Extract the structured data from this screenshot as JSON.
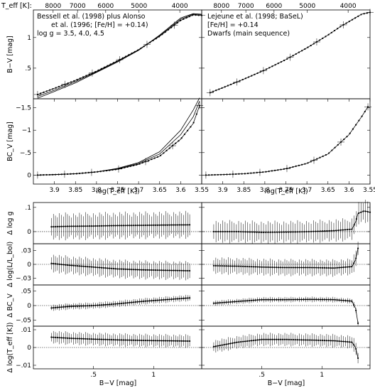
{
  "figure": {
    "teff_axis_label": "T_eff [K]:",
    "teff_ticks": [
      8000,
      7000,
      6000,
      5000,
      4000
    ],
    "logteff_label": "log(T_eff [K])",
    "bv_label": "B−V [mag]",
    "panel_notes": {
      "left": [
        "Bessell et al. (1998) plus Alonso",
        "et al. (1996; [Fe/H] = +0.14)",
        "log g = 3.5, 4.0, 4.5"
      ],
      "right": [
        "Lejeune et al. (1998; BaSeL)",
        "[Fe/H] = +0.14",
        "Dwarfs (main sequence)"
      ]
    }
  },
  "chart_data": [
    {
      "id": "top-left",
      "type": "line",
      "xlabel": "",
      "ylabel": "B−V [mag]",
      "xlim": [
        3.95,
        3.55
      ],
      "ylim": [
        0,
        1.45
      ],
      "x_ticks": [],
      "y_ticks": [
        0.5,
        1
      ],
      "series": [
        {
          "x": [
            3.94,
            3.9,
            3.85,
            3.8,
            3.75,
            3.7,
            3.65,
            3.6,
            3.57,
            3.55
          ],
          "y": [
            0.07,
            0.17,
            0.3,
            0.45,
            0.62,
            0.8,
            1.02,
            1.28,
            1.37,
            1.36
          ]
        },
        {
          "x": [
            3.94,
            3.9,
            3.85,
            3.8,
            3.75,
            3.7,
            3.65,
            3.6,
            3.57,
            3.55
          ],
          "y": [
            0.04,
            0.14,
            0.28,
            0.44,
            0.61,
            0.8,
            1.03,
            1.3,
            1.38,
            1.37
          ]
        },
        {
          "x": [
            3.94,
            3.9,
            3.85,
            3.8,
            3.75,
            3.7,
            3.65,
            3.6,
            3.57,
            3.55
          ],
          "y": [
            0.01,
            0.12,
            0.26,
            0.43,
            0.6,
            0.79,
            1.04,
            1.32,
            1.39,
            1.38
          ]
        }
      ]
    },
    {
      "id": "top-right",
      "type": "line",
      "xlabel": "",
      "ylabel": "",
      "xlim": [
        3.95,
        3.55
      ],
      "ylim": [
        0,
        1.45
      ],
      "x_ticks": [],
      "y_ticks": [
        0.5,
        1
      ],
      "series": [
        {
          "x": [
            3.93,
            3.9,
            3.85,
            3.8,
            3.75,
            3.7,
            3.65,
            3.62,
            3.6,
            3.57,
            3.55
          ],
          "y": [
            0.1,
            0.18,
            0.32,
            0.47,
            0.64,
            0.83,
            1.04,
            1.18,
            1.26,
            1.38,
            1.41
          ]
        }
      ]
    },
    {
      "id": "mid-left",
      "type": "line",
      "xlabel": "log(T_eff [K])",
      "ylabel": "BC_V [mag]",
      "xlim": [
        3.95,
        3.55
      ],
      "ylim": [
        0.2,
        -1.7
      ],
      "x_ticks": [
        3.9,
        3.85,
        3.8,
        3.75,
        3.7,
        3.65,
        3.6,
        3.55
      ],
      "y_ticks": [
        0,
        -0.5,
        -1,
        -1.5
      ],
      "series": [
        {
          "x": [
            3.94,
            3.9,
            3.85,
            3.8,
            3.75,
            3.7,
            3.65,
            3.6,
            3.57,
            3.555
          ],
          "y": [
            0.0,
            -0.01,
            -0.03,
            -0.07,
            -0.13,
            -0.24,
            -0.42,
            -0.8,
            -1.15,
            -1.55
          ]
        },
        {
          "x": [
            3.94,
            3.9,
            3.85,
            3.8,
            3.75,
            3.7,
            3.65,
            3.6,
            3.57,
            3.555
          ],
          "y": [
            0.0,
            -0.01,
            -0.03,
            -0.07,
            -0.14,
            -0.26,
            -0.47,
            -0.9,
            -1.3,
            -1.65
          ]
        },
        {
          "x": [
            3.94,
            3.9,
            3.85,
            3.8,
            3.75,
            3.7,
            3.65,
            3.6,
            3.57,
            3.555
          ],
          "y": [
            0.0,
            -0.01,
            -0.03,
            -0.07,
            -0.15,
            -0.28,
            -0.52,
            -1.0,
            -1.45,
            -1.72
          ]
        }
      ]
    },
    {
      "id": "mid-right",
      "type": "line",
      "xlabel": "log(T_eff [K])",
      "ylabel": "",
      "xlim": [
        3.95,
        3.55
      ],
      "ylim": [
        0.2,
        -1.7
      ],
      "x_ticks": [
        3.9,
        3.85,
        3.8,
        3.75,
        3.7,
        3.65,
        3.6,
        3.55
      ],
      "y_ticks": [
        0,
        -0.5,
        -1,
        -1.5
      ],
      "series": [
        {
          "x": [
            3.94,
            3.9,
            3.85,
            3.8,
            3.75,
            3.7,
            3.65,
            3.6,
            3.57,
            3.555
          ],
          "y": [
            0.0,
            -0.01,
            -0.03,
            -0.07,
            -0.14,
            -0.26,
            -0.47,
            -0.9,
            -1.3,
            -1.52
          ]
        }
      ]
    },
    {
      "id": "dlogg-left",
      "type": "line",
      "ylabel": "Δ log g",
      "xlim": [
        0,
        1.4
      ],
      "ylim": [
        -0.05,
        0.12
      ],
      "x_ticks": [],
      "y_ticks": [
        0,
        0.1
      ],
      "series": [
        {
          "x": [
            0.15,
            0.3,
            0.5,
            0.7,
            0.9,
            1.1,
            1.3
          ],
          "y": [
            0.02,
            0.022,
            0.023,
            0.025,
            0.026,
            0.027,
            0.028
          ]
        }
      ],
      "errorbar": 0.06
    },
    {
      "id": "dlogg-right",
      "type": "line",
      "ylabel": "",
      "xlim": [
        0,
        1.4
      ],
      "ylim": [
        -0.05,
        0.12
      ],
      "x_ticks": [],
      "y_ticks": [
        0,
        0.1
      ],
      "series": [
        {
          "x": [
            0.1,
            0.3,
            0.5,
            0.7,
            0.9,
            1.1,
            1.25,
            1.28,
            1.3,
            1.35,
            1.4
          ],
          "y": [
            0.0,
            0.0,
            -0.003,
            -0.002,
            0.0,
            0.004,
            0.01,
            0.04,
            0.075,
            0.085,
            0.08
          ]
        }
      ],
      "errorbar": 0.05
    },
    {
      "id": "dlogl-left",
      "type": "line",
      "ylabel": "Δ log(L/L_bol)",
      "xlim": [
        0,
        1.4
      ],
      "ylim": [
        -0.045,
        0.045
      ],
      "x_ticks": [],
      "y_ticks": [
        -0.03,
        0,
        0.03
      ],
      "series": [
        {
          "x": [
            0.15,
            0.3,
            0.5,
            0.7,
            0.9,
            1.1,
            1.3
          ],
          "y": [
            0.002,
            -0.002,
            -0.006,
            -0.01,
            -0.012,
            -0.013,
            -0.014
          ]
        }
      ],
      "errorbar": 0.022
    },
    {
      "id": "dlogl-right",
      "type": "line",
      "ylabel": "",
      "xlim": [
        0,
        1.4
      ],
      "ylim": [
        -0.045,
        0.045
      ],
      "x_ticks": [],
      "y_ticks": [
        -0.03,
        0,
        0.03
      ],
      "series": [
        {
          "x": [
            0.1,
            0.3,
            0.5,
            0.7,
            0.9,
            1.1,
            1.25,
            1.28,
            1.3
          ],
          "y": [
            -0.003,
            -0.004,
            -0.006,
            -0.007,
            -0.007,
            -0.008,
            -0.005,
            0.01,
            0.035
          ]
        }
      ],
      "errorbar": 0.02
    },
    {
      "id": "dbcv-left",
      "type": "line",
      "ylabel": "Δ BC_V",
      "xlim": [
        0,
        1.4
      ],
      "ylim": [
        -0.07,
        0.07
      ],
      "x_ticks": [],
      "y_ticks": [
        -0.05,
        0,
        0.05
      ],
      "series": [
        {
          "x": [
            0.15,
            0.3,
            0.5,
            0.7,
            0.9,
            1.1,
            1.3
          ],
          "y": [
            -0.008,
            -0.003,
            0.0,
            0.006,
            0.014,
            0.02,
            0.026
          ]
        }
      ],
      "errorbar": 0.012
    },
    {
      "id": "dbcv-right",
      "type": "line",
      "ylabel": "",
      "xlim": [
        0,
        1.4
      ],
      "ylim": [
        -0.07,
        0.07
      ],
      "x_ticks": [],
      "y_ticks": [
        -0.05,
        0,
        0.05
      ],
      "series": [
        {
          "x": [
            0.1,
            0.3,
            0.5,
            0.7,
            0.9,
            1.1,
            1.25,
            1.28,
            1.3
          ],
          "y": [
            0.008,
            0.014,
            0.02,
            0.02,
            0.021,
            0.02,
            0.015,
            -0.01,
            -0.06
          ]
        }
      ],
      "errorbar": 0.01
    },
    {
      "id": "dlogt-left",
      "type": "line",
      "ylabel": "Δ log(T_eff [K])",
      "xlim": [
        0,
        1.4
      ],
      "ylim": [
        -0.012,
        0.012
      ],
      "x_ticks": [
        0.5,
        1
      ],
      "y_ticks": [
        -0.01,
        0,
        0.01
      ],
      "series": [
        {
          "x": [
            0.15,
            0.3,
            0.5,
            0.7,
            0.9,
            1.1,
            1.3
          ],
          "y": [
            0.0058,
            0.0052,
            0.0047,
            0.0043,
            0.004,
            0.0038,
            0.0036
          ]
        }
      ],
      "errorbar": 0.004
    },
    {
      "id": "dlogt-right",
      "type": "line",
      "ylabel": "",
      "xlim": [
        0,
        1.4
      ],
      "ylim": [
        -0.012,
        0.012
      ],
      "x_ticks": [
        0.5,
        1
      ],
      "y_ticks": [
        -0.01,
        0,
        0.01
      ],
      "series": [
        {
          "x": [
            0.1,
            0.3,
            0.5,
            0.7,
            0.9,
            1.1,
            1.25,
            1.28,
            1.3
          ],
          "y": [
            0.0005,
            0.003,
            0.0045,
            0.0045,
            0.0042,
            0.0038,
            0.003,
            0.0,
            -0.006
          ]
        }
      ],
      "errorbar": 0.004
    }
  ]
}
